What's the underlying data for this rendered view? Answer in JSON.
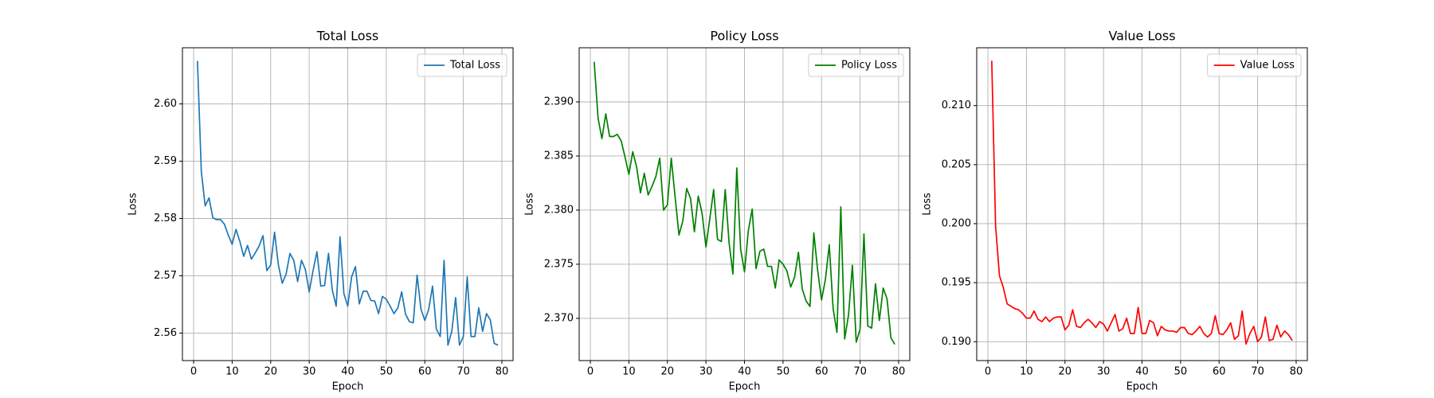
{
  "chart_data": [
    {
      "type": "line",
      "title": "Total Loss",
      "xlabel": "Epoch",
      "ylabel": "Loss",
      "grid": true,
      "legend": "upper right",
      "x": [
        1,
        2,
        3,
        4,
        5,
        6,
        7,
        8,
        9,
        10,
        11,
        12,
        13,
        14,
        15,
        16,
        17,
        18,
        19,
        20,
        21,
        22,
        23,
        24,
        25,
        26,
        27,
        28,
        29,
        30,
        31,
        32,
        33,
        34,
        35,
        36,
        37,
        38,
        39,
        40,
        41,
        42,
        43,
        44,
        45,
        46,
        47,
        48,
        49,
        50,
        51,
        52,
        53,
        54,
        55,
        56,
        57,
        58,
        59,
        60,
        61,
        62,
        63,
        64,
        65,
        66,
        67,
        68,
        69,
        70,
        71,
        72,
        73,
        74,
        75,
        76,
        77,
        78,
        79
      ],
      "series": [
        {
          "name": "Total Loss",
          "color": "#1f77b4",
          "values": [
            2.6075,
            2.5882,
            2.5822,
            2.5836,
            2.5801,
            2.5798,
            2.5798,
            2.579,
            2.5771,
            2.5755,
            2.5781,
            2.576,
            2.5734,
            2.5753,
            2.5729,
            2.574,
            2.5752,
            2.577,
            2.5709,
            2.5719,
            2.5776,
            2.5719,
            2.5687,
            2.5703,
            2.5739,
            2.5727,
            2.569,
            2.5727,
            2.5711,
            2.5672,
            2.5709,
            2.5742,
            2.5682,
            2.5683,
            2.5739,
            2.5675,
            2.5647,
            2.5768,
            2.5669,
            2.5647,
            2.5698,
            2.5716,
            2.5651,
            2.5673,
            2.5673,
            2.5657,
            2.5656,
            2.5634,
            2.5664,
            2.5659,
            2.5647,
            2.5634,
            2.5644,
            2.5672,
            2.5633,
            2.562,
            2.5618,
            2.5701,
            2.5642,
            2.5622,
            2.5641,
            2.5682,
            2.5607,
            2.5594,
            2.5727,
            2.5579,
            2.5603,
            2.5662,
            2.5579,
            2.5594,
            2.5698,
            2.5594,
            2.5594,
            2.5644,
            2.5603,
            2.5634,
            2.5623,
            2.5582,
            2.5579
          ]
        }
      ],
      "xlim": [
        -2.9,
        82.9
      ],
      "xticks": [
        0,
        10,
        20,
        30,
        40,
        50,
        60,
        70,
        80
      ],
      "ylim": [
        2.5552,
        2.6098
      ],
      "yticks": [
        2.56,
        2.57,
        2.58,
        2.59,
        {
          "value": 2.6,
          "label": "2.60"
        }
      ]
    },
    {
      "type": "line",
      "title": "Policy Loss",
      "xlabel": "Epoch",
      "ylabel": "Loss",
      "grid": true,
      "legend": "upper right",
      "x": [
        1,
        2,
        3,
        4,
        5,
        6,
        7,
        8,
        9,
        10,
        11,
        12,
        13,
        14,
        15,
        16,
        17,
        18,
        19,
        20,
        21,
        22,
        23,
        24,
        25,
        26,
        27,
        28,
        29,
        30,
        31,
        32,
        33,
        34,
        35,
        36,
        37,
        38,
        39,
        40,
        41,
        42,
        43,
        44,
        45,
        46,
        47,
        48,
        49,
        50,
        51,
        52,
        53,
        54,
        55,
        56,
        57,
        58,
        59,
        60,
        61,
        62,
        63,
        64,
        65,
        66,
        67,
        68,
        69,
        70,
        71,
        72,
        73,
        74,
        75,
        76,
        77,
        78,
        79
      ],
      "series": [
        {
          "name": "Policy Loss",
          "color": "#008000",
          "values": [
            2.3937,
            2.3885,
            2.3866,
            2.3889,
            2.3868,
            2.3868,
            2.387,
            2.3864,
            2.3849,
            2.3833,
            2.3854,
            2.384,
            2.3816,
            2.3834,
            2.3814,
            2.3822,
            2.3831,
            2.3848,
            2.38,
            2.3805,
            2.3848,
            2.3812,
            2.3777,
            2.379,
            2.382,
            2.3811,
            2.378,
            2.3813,
            2.3797,
            2.3766,
            2.3792,
            2.3819,
            2.3773,
            2.3771,
            2.3819,
            2.377,
            2.3741,
            2.3839,
            2.3764,
            2.3743,
            2.3781,
            2.3801,
            2.3746,
            2.3762,
            2.3764,
            2.3748,
            2.3748,
            2.3728,
            2.3754,
            2.375,
            2.3744,
            2.3729,
            2.3738,
            2.3761,
            2.3727,
            2.3716,
            2.3711,
            2.3779,
            2.3744,
            2.3717,
            2.3736,
            2.3768,
            2.3709,
            2.3687,
            2.3803,
            2.3681,
            2.3703,
            2.3749,
            2.3678,
            2.369,
            2.3778,
            2.3693,
            2.3691,
            2.3732,
            2.3698,
            2.3728,
            2.3718,
            2.3682,
            2.3676
          ]
        }
      ],
      "xlim": [
        -2.9,
        82.9
      ],
      "xticks": [
        0,
        10,
        20,
        30,
        40,
        50,
        60,
        70,
        80
      ],
      "ylim": [
        2.3661,
        2.395
      ],
      "yticks": [
        {
          "value": 2.37,
          "label": "2.370"
        },
        2.375,
        {
          "value": 2.38,
          "label": "2.380"
        },
        2.385,
        {
          "value": 2.39,
          "label": "2.390"
        }
      ]
    },
    {
      "type": "line",
      "title": "Value Loss",
      "xlabel": "Epoch",
      "ylabel": "Loss",
      "grid": true,
      "legend": "upper right",
      "x": [
        1,
        2,
        3,
        4,
        5,
        6,
        7,
        8,
        9,
        10,
        11,
        12,
        13,
        14,
        15,
        16,
        17,
        18,
        19,
        20,
        21,
        22,
        23,
        24,
        25,
        26,
        27,
        28,
        29,
        30,
        31,
        32,
        33,
        34,
        35,
        36,
        37,
        38,
        39,
        40,
        41,
        42,
        43,
        44,
        45,
        46,
        47,
        48,
        49,
        50,
        51,
        52,
        53,
        54,
        55,
        56,
        57,
        58,
        59,
        60,
        61,
        62,
        63,
        64,
        65,
        66,
        67,
        68,
        69,
        70,
        71,
        72,
        73,
        74,
        75,
        76,
        77,
        78,
        79
      ],
      "series": [
        {
          "name": "Value Loss",
          "color": "#ff0000",
          "values": [
            0.2138,
            0.1998,
            0.1956,
            0.1946,
            0.1932,
            0.193,
            0.1928,
            0.1927,
            0.1924,
            0.192,
            0.192,
            0.1926,
            0.1919,
            0.1917,
            0.1921,
            0.1917,
            0.192,
            0.1921,
            0.1921,
            0.191,
            0.1914,
            0.1927,
            0.1913,
            0.1912,
            0.1916,
            0.1919,
            0.1916,
            0.1912,
            0.1917,
            0.1915,
            0.1909,
            0.1916,
            0.1923,
            0.1909,
            0.1911,
            0.192,
            0.1907,
            0.1907,
            0.1929,
            0.1907,
            0.1907,
            0.1918,
            0.1916,
            0.1905,
            0.1913,
            0.191,
            0.1909,
            0.1909,
            0.1908,
            0.1912,
            0.1912,
            0.1907,
            0.1906,
            0.1909,
            0.1913,
            0.1907,
            0.1904,
            0.1907,
            0.1922,
            0.1907,
            0.1906,
            0.191,
            0.1916,
            0.1902,
            0.1905,
            0.1926,
            0.1898,
            0.1907,
            0.1913,
            0.19,
            0.1904,
            0.1921,
            0.1901,
            0.1902,
            0.1914,
            0.1904,
            0.1909,
            0.1906,
            0.1901
          ]
        }
      ],
      "xlim": [
        -2.9,
        82.9
      ],
      "xticks": [
        0,
        10,
        20,
        30,
        40,
        50,
        60,
        70,
        80
      ],
      "ylim": [
        0.1884,
        0.2149
      ],
      "yticks": [
        {
          "value": 0.19,
          "label": "0.190"
        },
        0.195,
        {
          "value": 0.2,
          "label": "0.200"
        },
        0.205,
        {
          "value": 0.21,
          "label": "0.210"
        }
      ]
    }
  ]
}
